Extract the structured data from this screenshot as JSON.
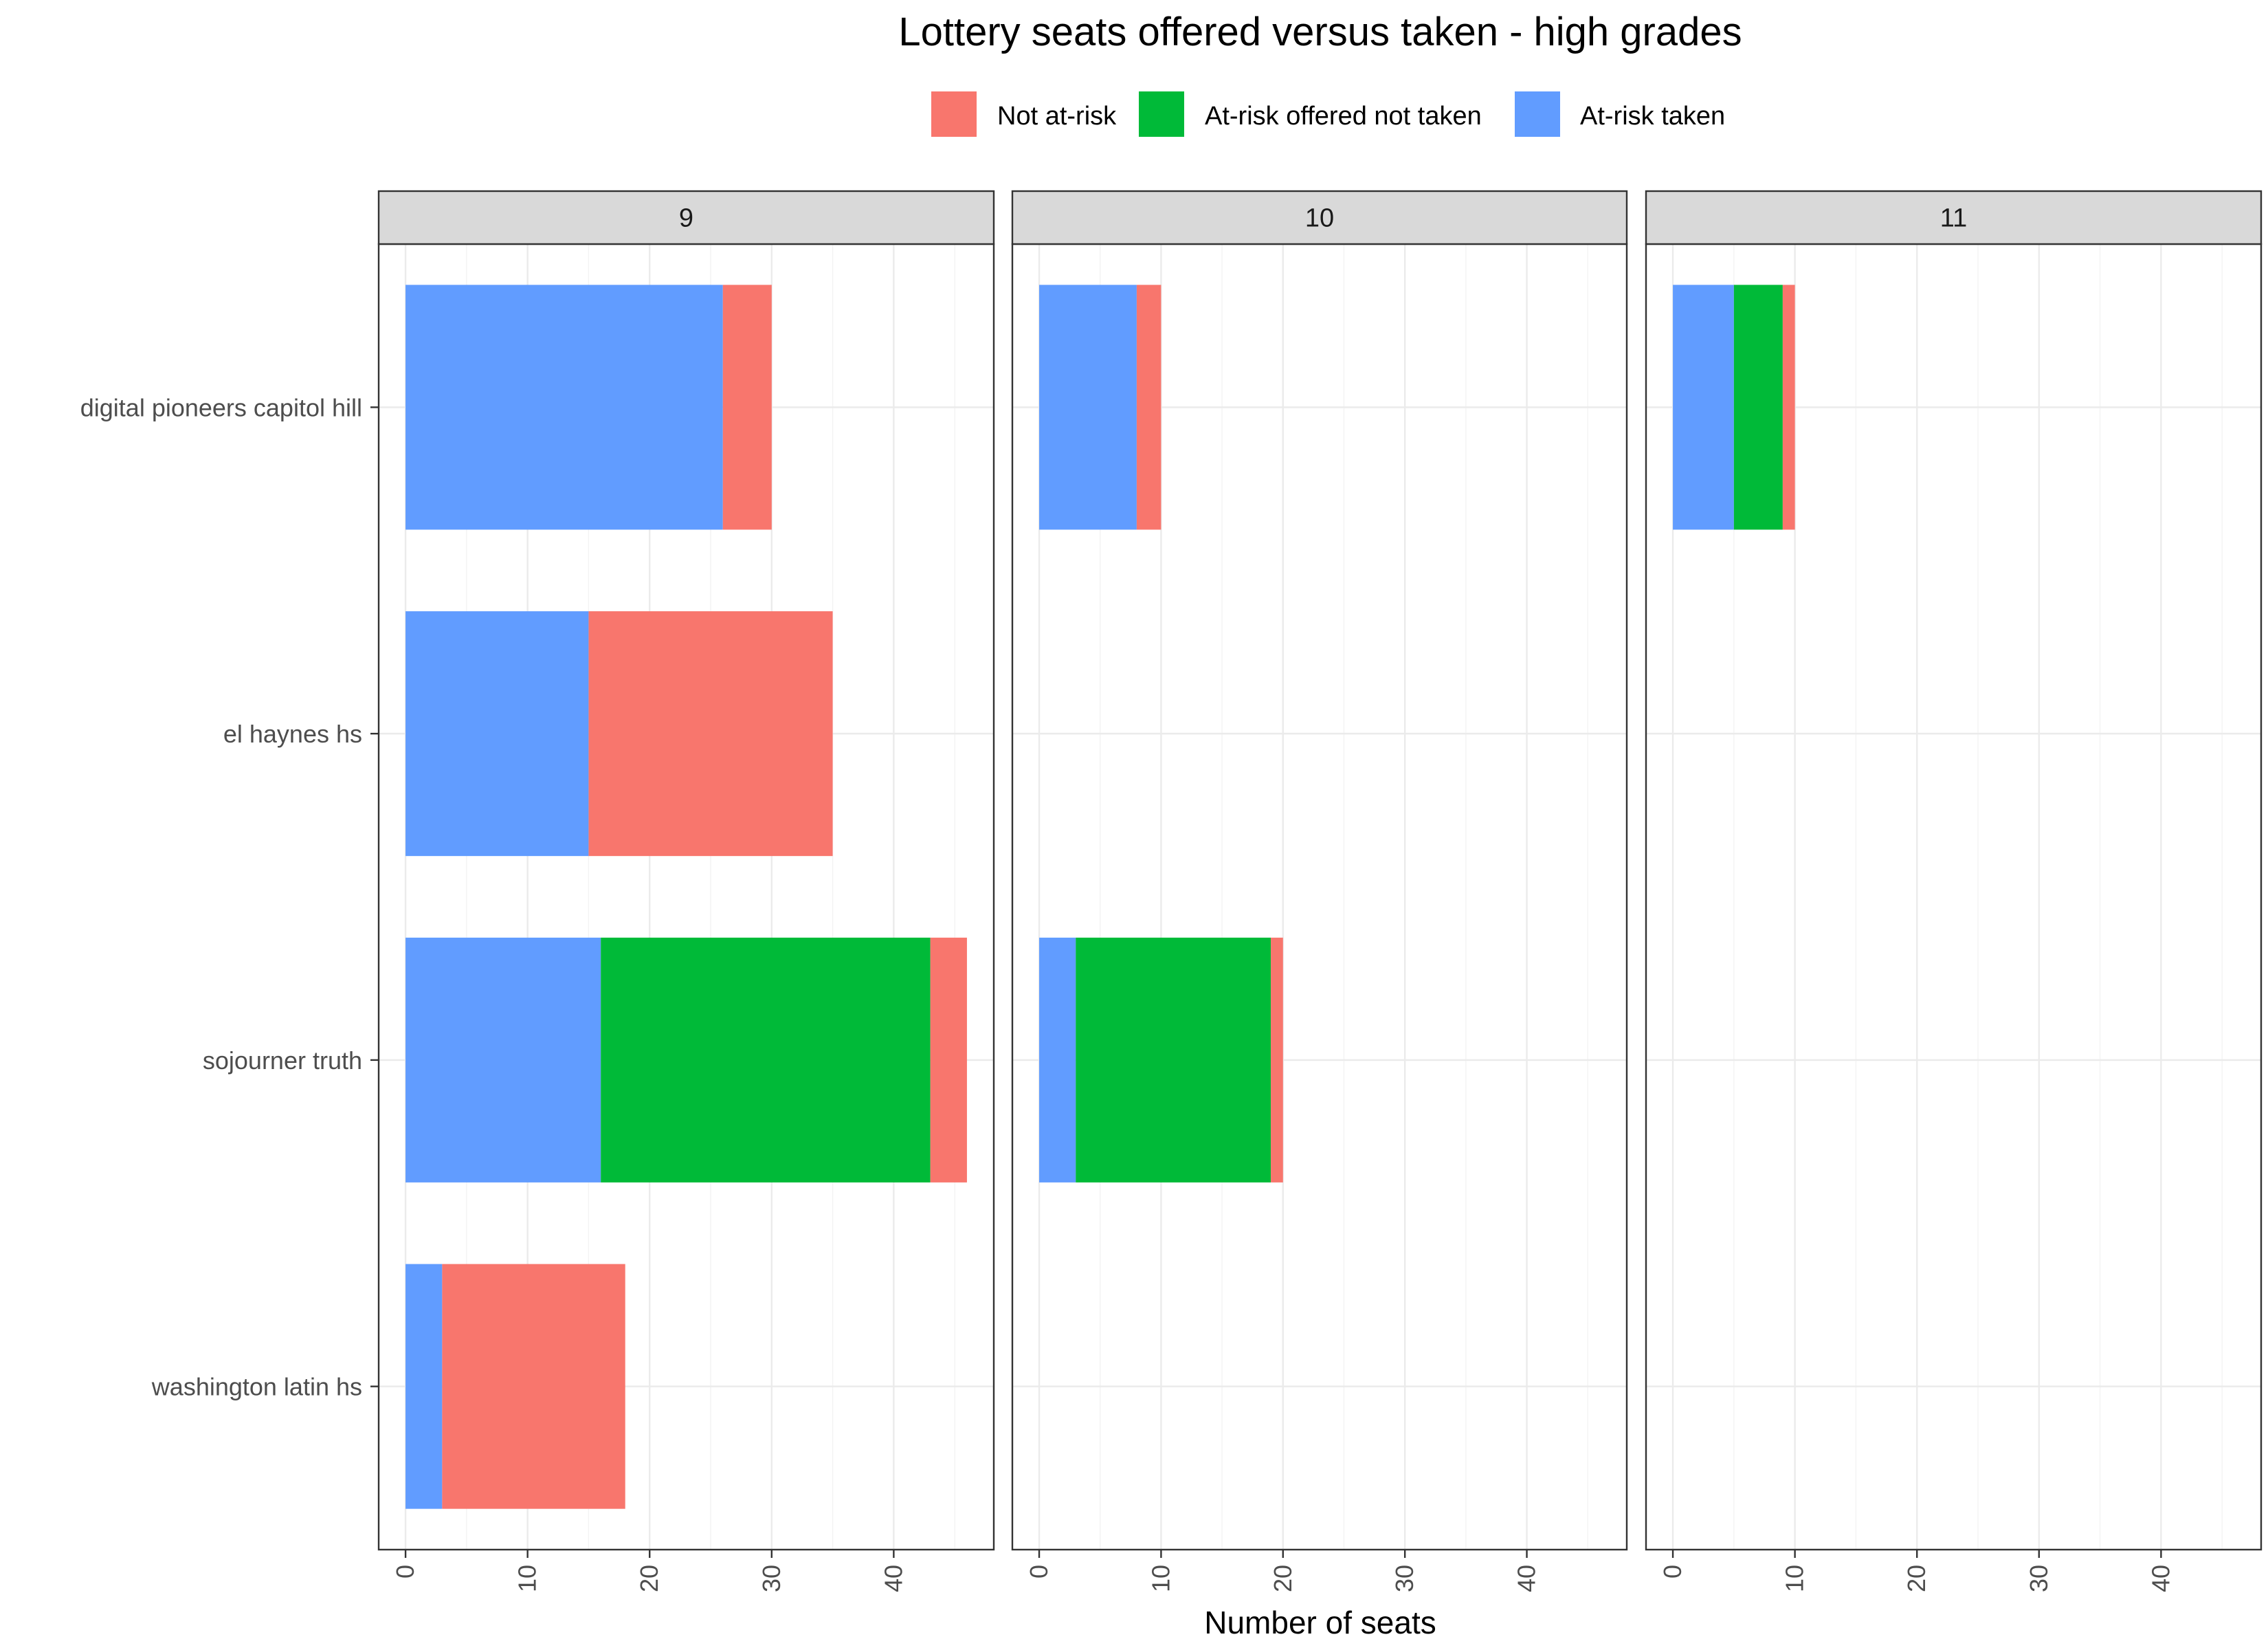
{
  "chart_data": {
    "type": "bar",
    "orientation": "horizontal",
    "stacked": true,
    "title": "Lottery seats offered versus taken - high grades",
    "xlabel": "Number of seats",
    "ylabel": "",
    "xlim": [
      -2.2,
      48.2
    ],
    "x_ticks": [
      0,
      10,
      20,
      30,
      40
    ],
    "grid": true,
    "legend_position": "top",
    "categories": [
      "washington latin hs",
      "sojourner truth",
      "el haynes hs",
      "digital pioneers capitol hill"
    ],
    "legend": [
      {
        "name": "Not at-risk",
        "color": "#F8766D"
      },
      {
        "name": "At-risk offered not taken",
        "color": "#00BA38"
      },
      {
        "name": "At-risk taken",
        "color": "#619CFF"
      }
    ],
    "stack_order": [
      "At-risk taken",
      "At-risk offered not taken",
      "Not at-risk"
    ],
    "facets": [
      {
        "label": "9",
        "series": [
          {
            "name": "At-risk taken",
            "values": [
              3,
              16,
              15,
              26
            ]
          },
          {
            "name": "At-risk offered not taken",
            "values": [
              0,
              27,
              0,
              0
            ]
          },
          {
            "name": "Not at-risk",
            "values": [
              15,
              3,
              20,
              4
            ]
          }
        ]
      },
      {
        "label": "10",
        "series": [
          {
            "name": "At-risk taken",
            "values": [
              0,
              3,
              0,
              8
            ]
          },
          {
            "name": "At-risk offered not taken",
            "values": [
              0,
              16,
              0,
              0
            ]
          },
          {
            "name": "Not at-risk",
            "values": [
              0,
              1,
              0,
              2
            ]
          }
        ]
      },
      {
        "label": "11",
        "series": [
          {
            "name": "At-risk taken",
            "values": [
              0,
              0,
              0,
              5
            ]
          },
          {
            "name": "At-risk offered not taken",
            "values": [
              0,
              0,
              0,
              4
            ]
          },
          {
            "name": "Not at-risk",
            "values": [
              0,
              0,
              0,
              1
            ]
          }
        ]
      }
    ]
  }
}
